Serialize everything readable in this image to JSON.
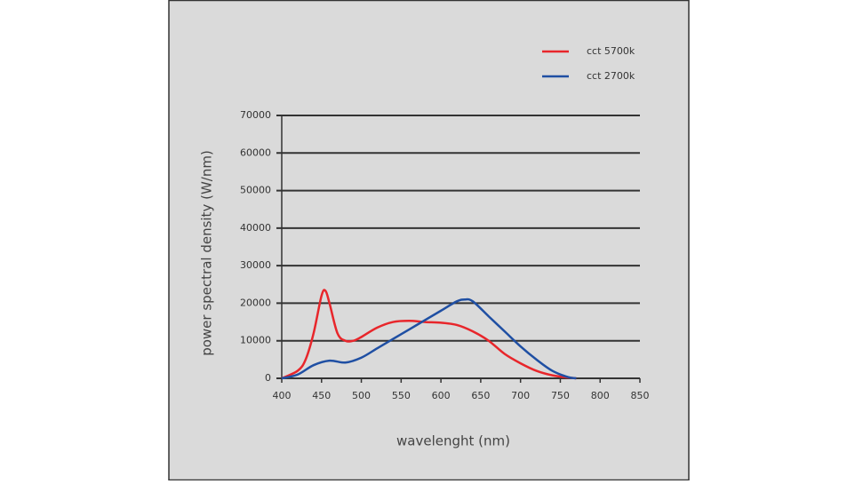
{
  "chart_data": {
    "type": "line",
    "x_label": "wavelenght (nm)",
    "y_label": "power spectral density (W/nm)",
    "xlim": [
      400,
      850
    ],
    "xticks": [
      400,
      450,
      500,
      550,
      600,
      650,
      700,
      750,
      800,
      850
    ],
    "ylim": [
      0,
      70000
    ],
    "yticks": [
      0,
      10000,
      20000,
      30000,
      40000,
      50000,
      60000,
      70000
    ],
    "grid": true,
    "legend": "upper right",
    "series": [
      {
        "name": "cct 5700k",
        "color": "#e8262b",
        "x": [
          400,
          420,
          430,
          440,
          450,
          455,
          460,
          470,
          480,
          490,
          500,
          520,
          540,
          560,
          580,
          600,
          620,
          640,
          660,
          680,
          700,
          720,
          740,
          760,
          770
        ],
        "values": [
          0,
          2000,
          5000,
          12000,
          22000,
          23300,
          20000,
          12000,
          10000,
          10000,
          11000,
          13500,
          15000,
          15300,
          15000,
          14800,
          14200,
          12500,
          10000,
          6500,
          4000,
          2000,
          800,
          200,
          0
        ]
      },
      {
        "name": "cct 2700k",
        "color": "#1f4fa3",
        "x": [
          400,
          420,
          440,
          460,
          480,
          500,
          520,
          540,
          560,
          580,
          600,
          620,
          630,
          640,
          660,
          680,
          700,
          720,
          740,
          760,
          770
        ],
        "values": [
          0,
          1000,
          3500,
          4700,
          4200,
          5500,
          8000,
          10500,
          13000,
          15500,
          18000,
          20500,
          21000,
          20500,
          16500,
          12500,
          8500,
          5000,
          2000,
          300,
          0
        ]
      }
    ]
  }
}
